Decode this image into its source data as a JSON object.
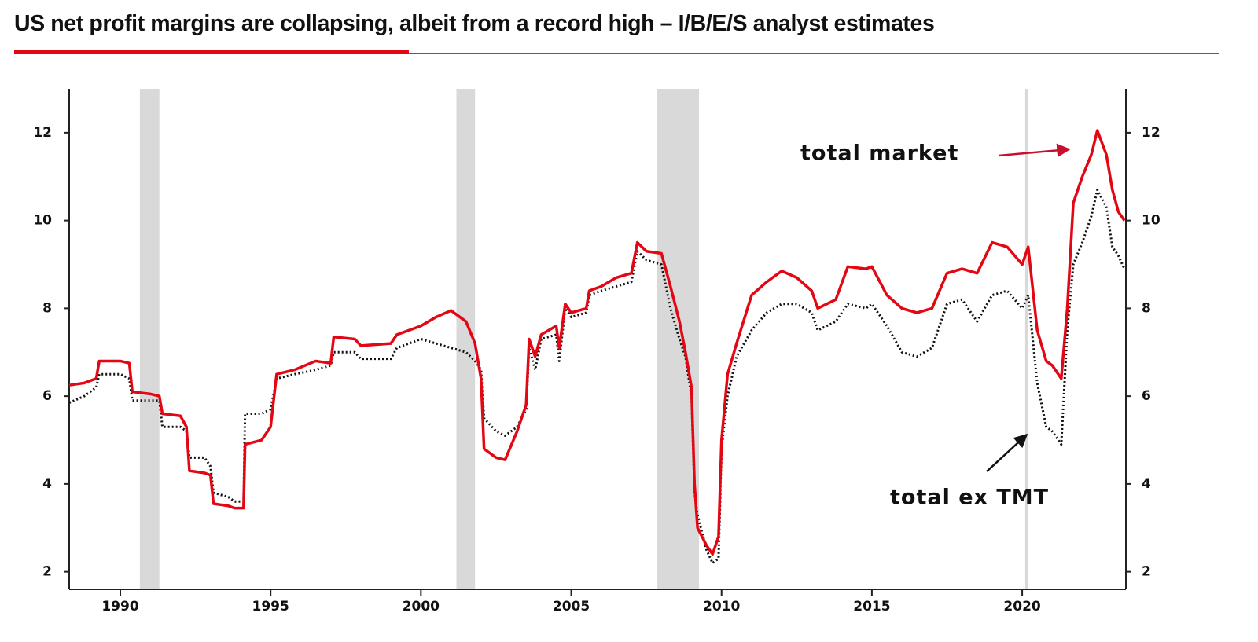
{
  "chart_data": {
    "type": "line",
    "title": "US net profit margins are collapsing, albeit from a record high – I/B/E/S analyst estimates",
    "xlim": [
      1988.3,
      2023.45
    ],
    "xticks": [
      1990,
      1995,
      2000,
      2005,
      2010,
      2015,
      2020
    ],
    "ylim": [
      1.6,
      13
    ],
    "yticks": [
      2,
      4,
      6,
      8,
      10,
      12
    ],
    "y2lim": [
      1.6,
      13
    ],
    "y2ticks": [
      2,
      4,
      6,
      8,
      10,
      12
    ],
    "recessions": [
      [
        1990.65,
        1991.3
      ],
      [
        2001.18,
        2001.8
      ],
      [
        2007.85,
        2009.25
      ],
      [
        2020.1,
        2020.2
      ]
    ],
    "recession_color": "#d9d9d9",
    "x": [
      1988.3,
      1988.8,
      1989.2,
      1989.3,
      1990.0,
      1990.3,
      1990.4,
      1991.0,
      1991.3,
      1991.4,
      1992.0,
      1992.2,
      1992.3,
      1992.8,
      1993.0,
      1993.1,
      1993.6,
      1993.8,
      1994.1,
      1994.15,
      1994.7,
      1995.0,
      1995.2,
      1995.8,
      1996.5,
      1997.0,
      1997.1,
      1997.8,
      1998.0,
      1999.0,
      1999.2,
      2000.0,
      2000.5,
      2001.0,
      2001.5,
      2001.8,
      2002.0,
      2002.1,
      2002.5,
      2002.8,
      2003.2,
      2003.5,
      2003.6,
      2003.8,
      2004.0,
      2004.5,
      2004.6,
      2004.8,
      2005.0,
      2005.5,
      2005.6,
      2006.0,
      2006.5,
      2007.0,
      2007.2,
      2007.5,
      2008.0,
      2008.3,
      2008.6,
      2008.8,
      2009.0,
      2009.1,
      2009.2,
      2009.5,
      2009.7,
      2009.9,
      2010.0,
      2010.2,
      2010.5,
      2011.0,
      2011.5,
      2012.0,
      2012.5,
      2013.0,
      2013.2,
      2013.8,
      2014.2,
      2014.8,
      2015.0,
      2015.5,
      2016.0,
      2016.5,
      2017.0,
      2017.5,
      2018.0,
      2018.5,
      2019.0,
      2019.5,
      2020.0,
      2020.2,
      2020.5,
      2020.8,
      2021.0,
      2021.3,
      2021.5,
      2021.7,
      2022.0,
      2022.3,
      2022.5,
      2022.8,
      2023.0,
      2023.2,
      2023.4
    ],
    "series": [
      {
        "name": "total market",
        "color": "#e30613",
        "style": "solid",
        "values": [
          6.25,
          6.3,
          6.4,
          6.8,
          6.8,
          6.75,
          6.1,
          6.05,
          6.0,
          5.6,
          5.55,
          5.3,
          4.3,
          4.25,
          4.2,
          3.55,
          3.5,
          3.45,
          3.45,
          4.9,
          5.0,
          5.3,
          6.5,
          6.6,
          6.8,
          6.75,
          7.35,
          7.3,
          7.15,
          7.2,
          7.4,
          7.6,
          7.8,
          7.95,
          7.7,
          7.2,
          6.4,
          4.8,
          4.6,
          4.55,
          5.2,
          5.8,
          7.3,
          6.9,
          7.4,
          7.6,
          7.1,
          8.1,
          7.9,
          8.0,
          8.4,
          8.5,
          8.7,
          8.8,
          9.5,
          9.3,
          9.25,
          8.5,
          7.7,
          7.0,
          6.2,
          4.0,
          3.0,
          2.6,
          2.4,
          2.8,
          5.0,
          6.5,
          7.2,
          8.3,
          8.6,
          8.85,
          8.7,
          8.4,
          8.0,
          8.2,
          8.95,
          8.9,
          8.95,
          8.3,
          8.0,
          7.9,
          8.0,
          8.8,
          8.9,
          8.8,
          9.5,
          9.4,
          9.0,
          9.4,
          7.5,
          6.8,
          6.7,
          6.4,
          8.0,
          10.4,
          11.0,
          11.5,
          12.05,
          11.5,
          10.7,
          10.2,
          10.0
        ]
      },
      {
        "name": "total ex TMT",
        "color": "#111111",
        "style": "dotted",
        "values": [
          5.85,
          6.0,
          6.2,
          6.5,
          6.5,
          6.4,
          5.9,
          5.9,
          5.9,
          5.3,
          5.3,
          5.2,
          4.6,
          4.6,
          4.4,
          3.8,
          3.7,
          3.6,
          3.6,
          5.6,
          5.6,
          5.7,
          6.4,
          6.5,
          6.6,
          6.7,
          7.0,
          7.0,
          6.85,
          6.85,
          7.1,
          7.3,
          7.2,
          7.1,
          7.0,
          6.8,
          6.6,
          5.5,
          5.2,
          5.1,
          5.3,
          5.7,
          7.1,
          6.6,
          7.3,
          7.4,
          6.8,
          8.0,
          7.8,
          7.9,
          8.3,
          8.4,
          8.5,
          8.6,
          9.3,
          9.1,
          9.0,
          8.0,
          7.3,
          6.9,
          6.0,
          3.8,
          3.3,
          2.5,
          2.2,
          2.3,
          4.8,
          6.0,
          6.9,
          7.5,
          7.9,
          8.1,
          8.1,
          7.9,
          7.5,
          7.7,
          8.1,
          8.0,
          8.1,
          7.6,
          7.0,
          6.9,
          7.1,
          8.1,
          8.2,
          7.7,
          8.3,
          8.4,
          8.0,
          8.3,
          6.3,
          5.3,
          5.2,
          4.9,
          7.5,
          9.0,
          9.5,
          10.1,
          10.7,
          10.3,
          9.4,
          9.2,
          8.9
        ]
      }
    ]
  }
}
